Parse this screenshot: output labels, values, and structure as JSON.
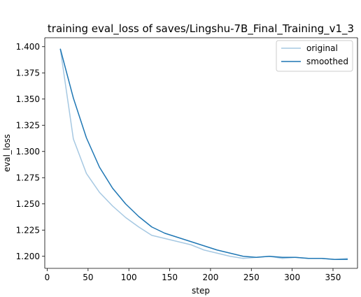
{
  "chart_data": {
    "type": "line",
    "title": "training eval_loss of saves/Lingshu-7B_Final_Training_v1_3",
    "xlabel": "step",
    "ylabel": "eval_loss",
    "xlim": [
      -3,
      380
    ],
    "ylim": [
      1.1885,
      1.4085
    ],
    "xticks": [
      0,
      50,
      100,
      150,
      200,
      250,
      300,
      350
    ],
    "yticks": [
      1.2,
      1.225,
      1.25,
      1.275,
      1.3,
      1.325,
      1.35,
      1.375,
      1.4
    ],
    "ytick_labels": [
      "1.200",
      "1.225",
      "1.250",
      "1.275",
      "1.300",
      "1.325",
      "1.350",
      "1.375",
      "1.400"
    ],
    "legend_position": "top-right",
    "grid": false,
    "series": [
      {
        "name": "original",
        "color": "#a6c8e2",
        "x": [
          16,
          32,
          48,
          64,
          80,
          96,
          112,
          128,
          144,
          160,
          176,
          192,
          208,
          224,
          240,
          256,
          272,
          288,
          304,
          320,
          336,
          352,
          368
        ],
        "values": [
          1.398,
          1.312,
          1.279,
          1.261,
          1.248,
          1.237,
          1.228,
          1.22,
          1.217,
          1.214,
          1.211,
          1.206,
          1.203,
          1.2,
          1.198,
          1.199,
          1.2,
          1.198,
          1.199,
          1.198,
          1.198,
          1.197,
          1.198
        ]
      },
      {
        "name": "smoothed",
        "color": "#1f77b4",
        "x": [
          16,
          32,
          48,
          64,
          80,
          96,
          112,
          128,
          144,
          160,
          176,
          192,
          208,
          224,
          240,
          256,
          272,
          288,
          304,
          320,
          336,
          352,
          368
        ],
        "values": [
          1.398,
          1.351,
          1.313,
          1.285,
          1.265,
          1.25,
          1.238,
          1.228,
          1.222,
          1.218,
          1.214,
          1.21,
          1.206,
          1.203,
          1.2,
          1.199,
          1.2,
          1.199,
          1.199,
          1.198,
          1.198,
          1.197,
          1.197
        ]
      }
    ]
  }
}
